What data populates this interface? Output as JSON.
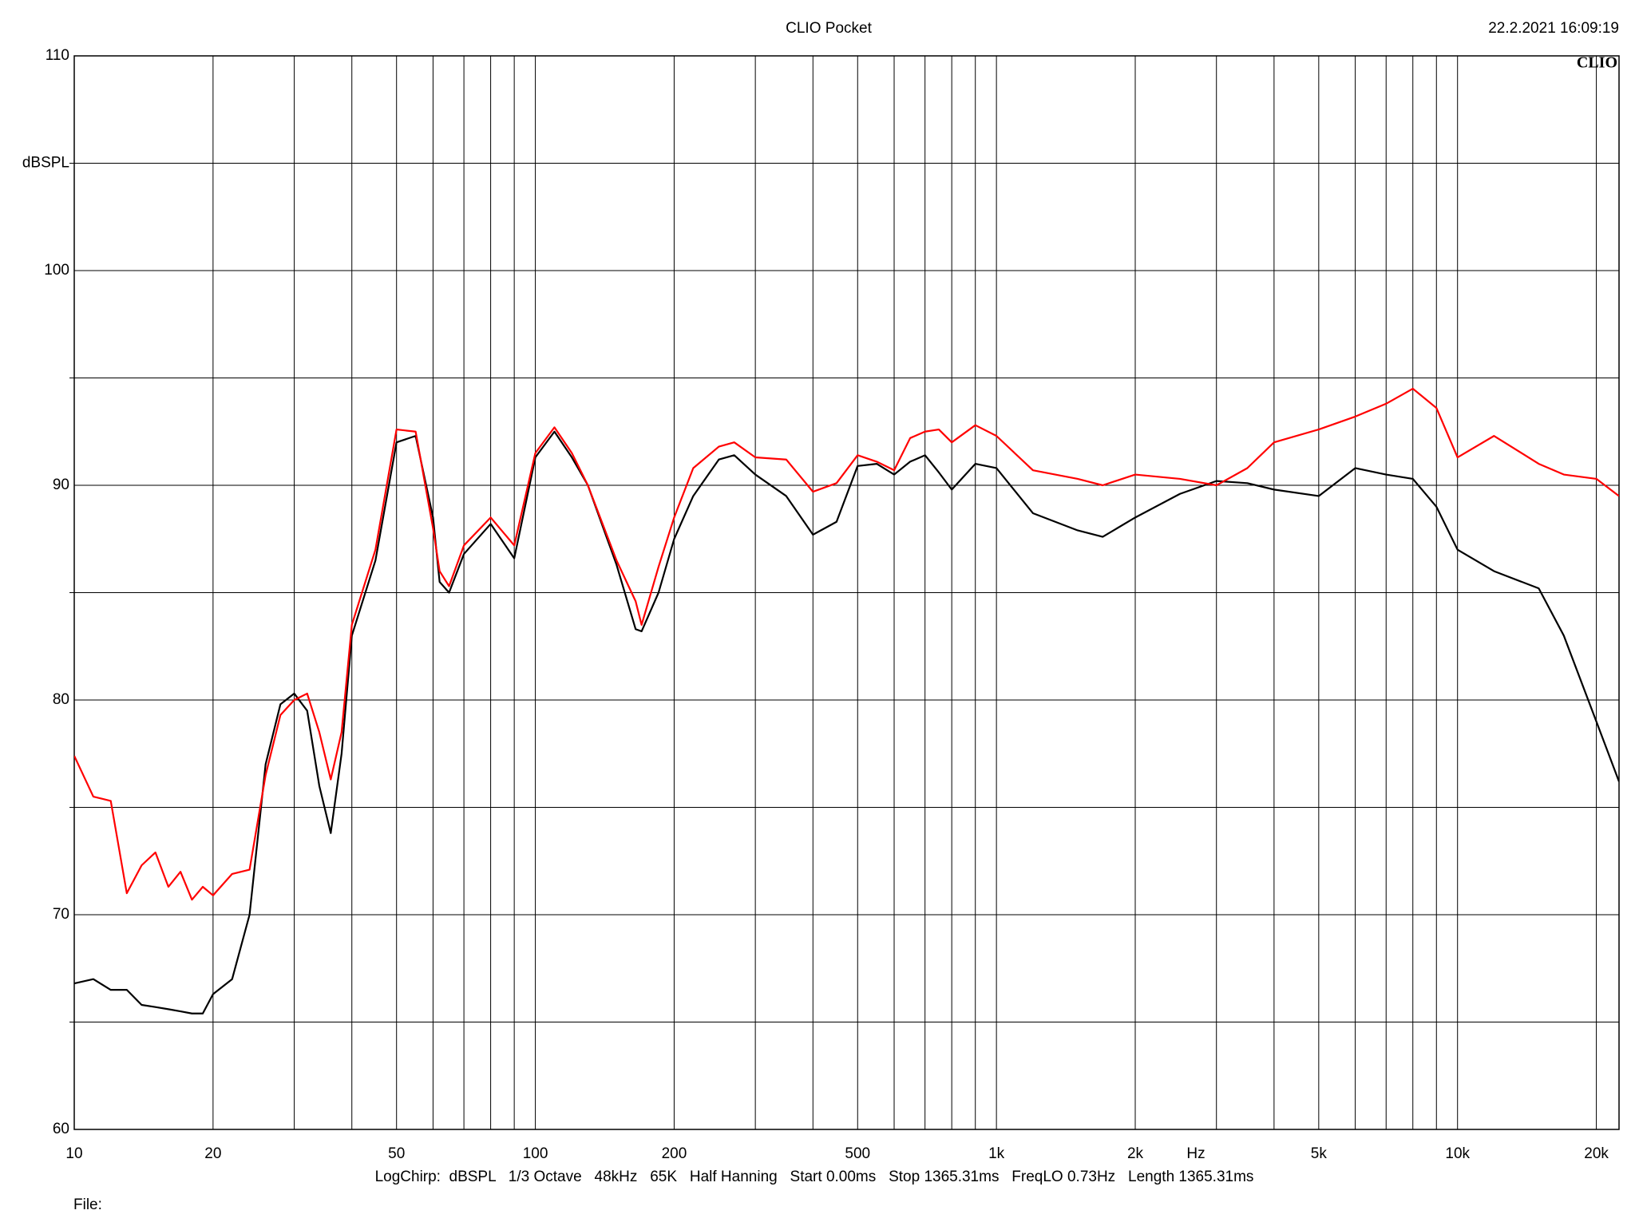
{
  "chart_data": {
    "type": "line",
    "title": "CLIO Pocket",
    "timestamp": "22.2.2021 16:09:19",
    "logo": "CLIO",
    "y_label": "dBSPL",
    "x_label": "Hz",
    "footer": "LogChirp:  dBSPL   1/3 Octave   48kHz   65K   Half Hanning   Start 0.00ms   Stop 1365.31ms   FreqLO 0.73Hz   Length 1365.31ms",
    "file_label": "File:",
    "x_log": true,
    "grid": true,
    "xlim": [
      10,
      22400
    ],
    "ylim": [
      60,
      110
    ],
    "xticks": [
      10,
      20,
      50,
      100,
      200,
      500,
      {
        "value": 1000,
        "label": "1k"
      },
      {
        "value": 2000,
        "label": "2k"
      },
      {
        "value": 5000,
        "label": "5k"
      },
      {
        "value": 10000,
        "label": "10k"
      },
      {
        "value": 20000,
        "label": "20k"
      }
    ],
    "xgrid": [
      30,
      40,
      60,
      70,
      80,
      90,
      300,
      400,
      600,
      700,
      800,
      900,
      3000,
      4000,
      6000,
      7000,
      8000,
      9000
    ],
    "yticks": [
      60,
      70,
      80,
      90,
      100,
      110
    ],
    "ygrid": [
      65,
      75,
      85,
      95,
      105
    ],
    "x": [
      10,
      11,
      12,
      13,
      14,
      15,
      16,
      17,
      18,
      19,
      20,
      22,
      24,
      26,
      28,
      30,
      32,
      34,
      36,
      38,
      40,
      45,
      50,
      55,
      60,
      62,
      65,
      70,
      80,
      90,
      100,
      110,
      120,
      130,
      150,
      165,
      170,
      185,
      200,
      220,
      250,
      270,
      300,
      350,
      400,
      450,
      500,
      550,
      600,
      650,
      700,
      750,
      800,
      900,
      1000,
      1200,
      1500,
      1700,
      2000,
      2500,
      3000,
      3500,
      4000,
      5000,
      6000,
      7000,
      8000,
      9000,
      10000,
      12000,
      15000,
      17000,
      20000,
      22400
    ],
    "series": [
      {
        "color": "#000000",
        "values": [
          66.8,
          67.0,
          66.5,
          66.5,
          65.8,
          65.7,
          65.6,
          65.5,
          65.4,
          65.4,
          66.3,
          67.0,
          70.0,
          77.0,
          79.8,
          80.3,
          79.5,
          76.0,
          73.8,
          77.5,
          83.0,
          86.5,
          92.0,
          92.3,
          88.5,
          85.5,
          85.0,
          86.8,
          88.2,
          86.6,
          91.3,
          92.5,
          91.3,
          90.0,
          86.3,
          83.3,
          83.2,
          85.0,
          87.5,
          89.5,
          91.2,
          91.4,
          90.5,
          89.5,
          87.7,
          88.3,
          90.9,
          91.0,
          90.5,
          91.1,
          91.4,
          90.6,
          89.8,
          91.0,
          90.8,
          88.7,
          87.9,
          87.6,
          88.5,
          89.6,
          90.2,
          90.1,
          89.8,
          89.5,
          90.8,
          90.5,
          90.3,
          89.0,
          87.0,
          86.0,
          85.2,
          83.0,
          79.0,
          76.2
        ]
      },
      {
        "color": "#ff0000",
        "values": [
          77.4,
          75.5,
          75.3,
          71.0,
          72.3,
          72.9,
          71.3,
          72.0,
          70.7,
          71.3,
          70.9,
          71.9,
          72.1,
          76.5,
          79.3,
          80.0,
          80.3,
          78.5,
          76.3,
          78.5,
          83.5,
          87.0,
          92.6,
          92.5,
          88.0,
          86.0,
          85.3,
          87.2,
          88.5,
          87.2,
          91.5,
          92.7,
          91.5,
          90.0,
          86.5,
          84.6,
          83.5,
          86.2,
          88.5,
          90.8,
          91.8,
          92.0,
          91.3,
          91.2,
          89.7,
          90.1,
          91.4,
          91.1,
          90.7,
          92.2,
          92.5,
          92.6,
          92.0,
          92.8,
          92.3,
          90.7,
          90.3,
          90.0,
          90.5,
          90.3,
          90.0,
          90.8,
          92.0,
          92.6,
          93.2,
          93.8,
          94.5,
          93.6,
          91.3,
          92.3,
          91.0,
          90.5,
          90.3,
          89.5
        ]
      }
    ]
  }
}
